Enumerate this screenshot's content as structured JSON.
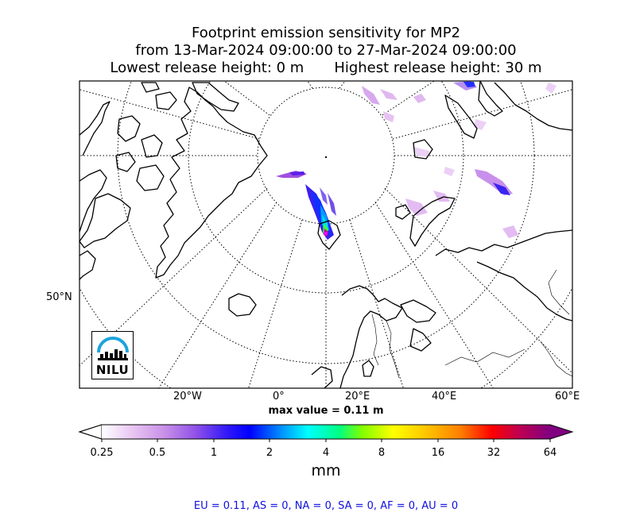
{
  "title": {
    "line1": "Footprint emission sensitivity for MP2",
    "line2": "from 13-Mar-2024 09:00:00 to 27-Mar-2024 09:00:00",
    "lowest_release": "Lowest release height: 0 m",
    "highest_release": "Highest release height: 30 m"
  },
  "map": {
    "projection": "north-polar-stereographic",
    "latitude_label": "50°N",
    "longitude_labels": [
      "20°W",
      "0°",
      "20°E",
      "40°E",
      "60°E"
    ],
    "max_value_text": "max value = 0.11 m",
    "logo_text": "NILU",
    "colors": {
      "coastline": "#000000",
      "graticule": "#000000",
      "frame": "#000000"
    }
  },
  "colorbar": {
    "unit": "mm",
    "ticks": [
      "0.25",
      "0.5",
      "1",
      "2",
      "4",
      "8",
      "16",
      "32",
      "64"
    ],
    "colors": [
      "#ffffff",
      "#e3b8ee",
      "#c77dde",
      "#8a3ce0",
      "#0000ff",
      "#0090ff",
      "#00ffff",
      "#00ff7f",
      "#80ff00",
      "#ffff00",
      "#ffc800",
      "#ff7f00",
      "#ff0000",
      "#d00040",
      "#800080"
    ]
  },
  "footer": "EU = 0.11,  AS = 0,  NA = 0,  SA = 0,  AF = 0,  AU = 0"
}
